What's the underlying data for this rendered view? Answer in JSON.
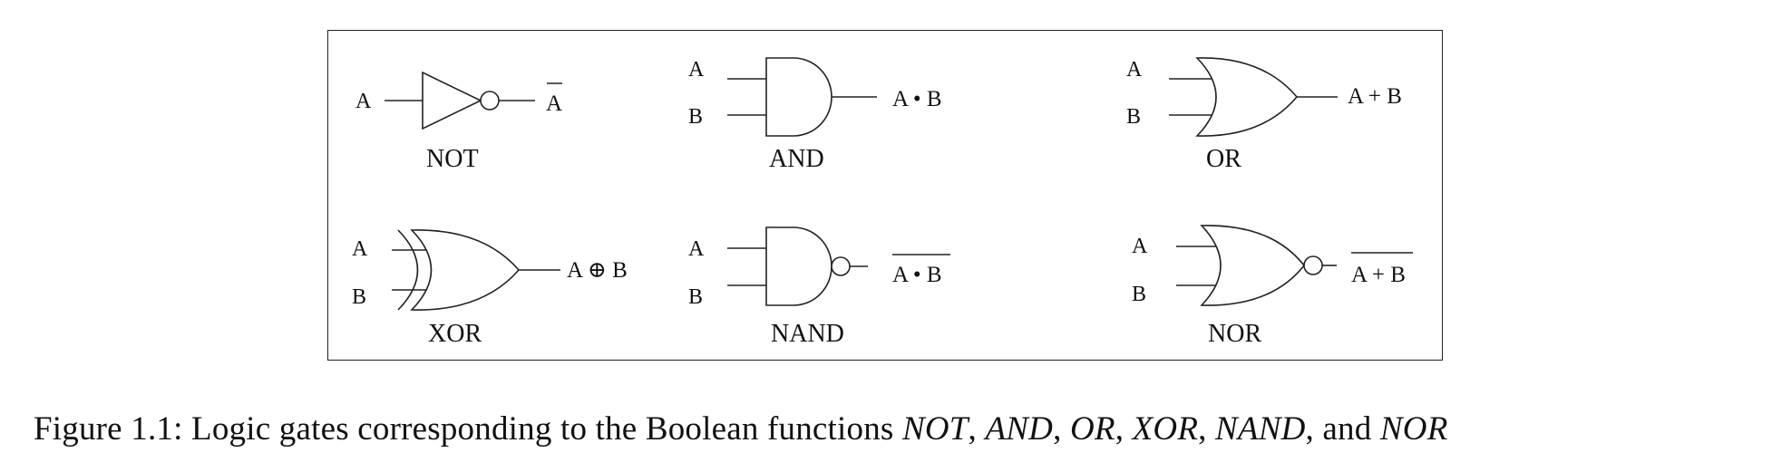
{
  "gates": [
    {
      "id": "not",
      "name": "NOT",
      "inputs": [
        "A"
      ],
      "output": "A",
      "output_op": "",
      "overbar": true
    },
    {
      "id": "and",
      "name": "AND",
      "inputs": [
        "A",
        "B"
      ],
      "output": "A • B",
      "output_op": "",
      "overbar": false
    },
    {
      "id": "or",
      "name": "OR",
      "inputs": [
        "A",
        "B"
      ],
      "output": "A + B",
      "output_op": "",
      "overbar": false
    },
    {
      "id": "xor",
      "name": "XOR",
      "inputs": [
        "A",
        "B"
      ],
      "output": "A ⊕ B",
      "output_op": "",
      "overbar": false
    },
    {
      "id": "nand",
      "name": "NAND",
      "inputs": [
        "A",
        "B"
      ],
      "output": "A • B",
      "output_op": "",
      "overbar": true
    },
    {
      "id": "nor",
      "name": "NOR",
      "inputs": [
        "A",
        "B"
      ],
      "output": "A + B",
      "output_op": "",
      "overbar": true
    }
  ],
  "caption": {
    "prefix": "Figure 1.1: Logic gates corresponding to the Boolean functions ",
    "fn1": "NOT",
    "sep1": ", ",
    "fn2": "AND",
    "sep2": ", ",
    "fn3": "OR",
    "sep3": ", ",
    "fn4": "XOR",
    "sep4": ", ",
    "fn5": "NAND",
    "sep5": ", and ",
    "fn6": "NOR"
  }
}
